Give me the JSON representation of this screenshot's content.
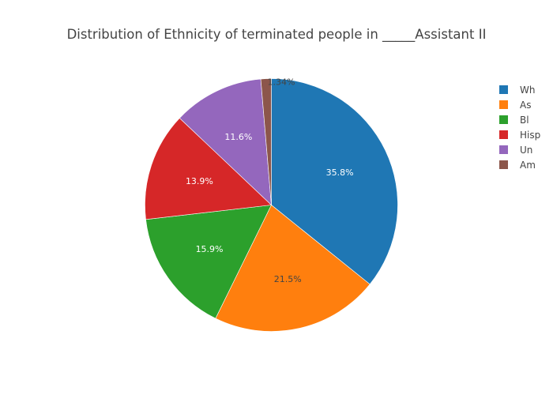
{
  "chart_data": {
    "type": "pie",
    "title": "Distribution of Ethnicity of terminated people in _____Assistant II",
    "labels": [
      "Wh",
      "As",
      "Bl",
      "Hisp",
      "Un",
      "Am"
    ],
    "values": [
      35.8,
      21.5,
      15.9,
      13.9,
      11.6,
      1.34
    ],
    "value_labels": [
      "35.8%",
      "21.5%",
      "15.9%",
      "13.9%",
      "11.6%",
      "1.34%"
    ],
    "colors": [
      "#1f77b4",
      "#ff7f0e",
      "#2ca02c",
      "#d62728",
      "#9467bd",
      "#8c564b"
    ],
    "legend_position": "top-right",
    "direction": "clockwise",
    "start": "top"
  }
}
